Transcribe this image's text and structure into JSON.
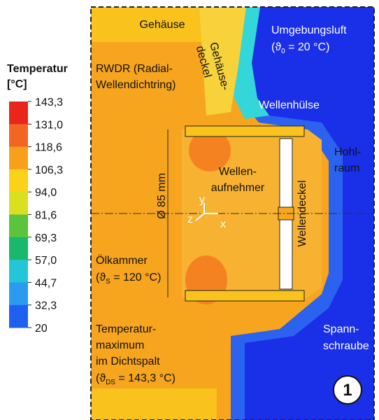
{
  "legend": {
    "title": "Temperatur",
    "unit": "[°C]",
    "ticks": [
      "143,3",
      "131,0",
      "118,6",
      "106,3",
      "94,0",
      "81,6",
      "69,3",
      "57,0",
      "44,7",
      "32,3",
      "20"
    ]
  },
  "labels": {
    "gehaeuse": "Gehäuse",
    "gehaeusedeckel": [
      "Gehäuse-",
      "deckel"
    ],
    "umgebungsluft": {
      "line1": "Umgebungsluft",
      "pre": "(ϑ",
      "sub": "0",
      "post": " = 20 °C)"
    },
    "rwdr": [
      "RWDR (Radial-",
      "Wellendichtring)"
    ],
    "wellenhuelse": "Wellenhülse",
    "hohlraum": [
      "Hohl-",
      "raum"
    ],
    "durchmesser": "Ø 85 mm",
    "wellenaufnehmer": [
      "Wellen-",
      "aufnehmer"
    ],
    "wellendeckel": "Wellendeckel",
    "axes": {
      "y": "y",
      "z": "z",
      "x": "x"
    },
    "oelkammer": {
      "line1": "Ölkammer",
      "pre": "(ϑ",
      "sub": "S",
      "post": " = 120 °C)"
    },
    "spannschraube": [
      "Spann-",
      "schraube"
    ],
    "temperaturmaximum": {
      "lines": [
        "Temperatur-",
        "maximum",
        "im Dichtspalt"
      ],
      "pre": "(ϑ",
      "sub": "DS",
      "post": " = 143,3 °C)"
    },
    "figure_number": "1"
  }
}
